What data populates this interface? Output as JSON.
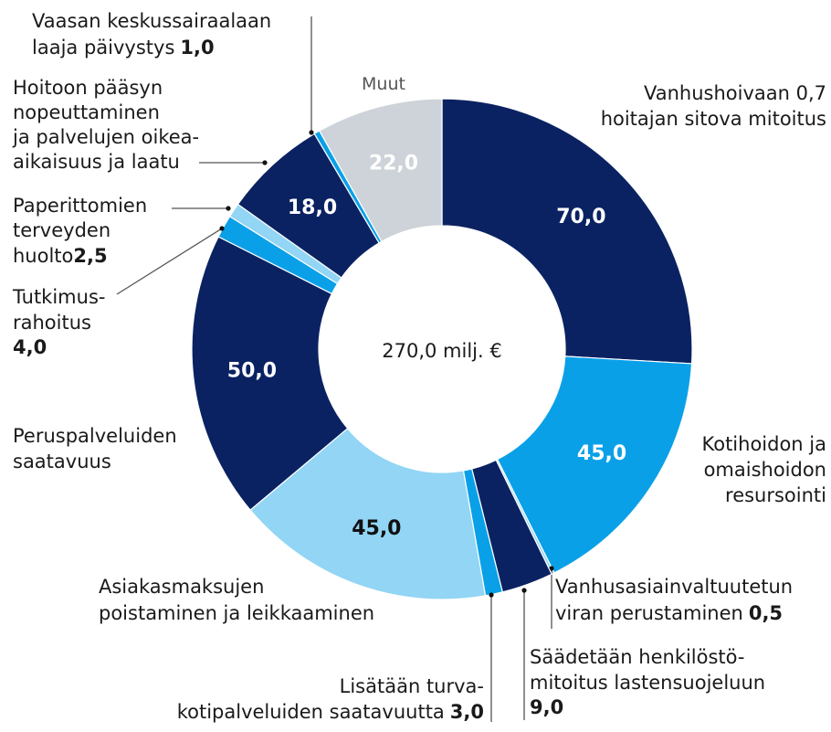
{
  "chart_data": {
    "type": "donut",
    "center_label": "270,0 milj. €",
    "categories": [
      [
        "Vanhushoivaan 0,7",
        "hoitajan sitova mitoitus"
      ],
      [
        "Kotihoidon ja",
        "omaishoidon",
        "resursointi"
      ],
      [
        "Vanhusasiainvaltuutetun",
        "viran perustaminen"
      ],
      [
        "Säädetään henkilöstö-",
        "mitoitus lastensuojeluun"
      ],
      [
        "Lisätään turva-",
        "kotipalveluiden saatavuutta"
      ],
      [
        "Asiakasmaksujen",
        "poistaminen ja leikkaaminen"
      ],
      [
        "Peruspalveluiden",
        "saatavuus"
      ],
      [
        "Tutkimus-",
        "rahoitus"
      ],
      [
        "Paperittomien",
        "terveyden",
        "huolto"
      ],
      [
        "Hoitoon pääsyn",
        "nopeuttaminen",
        "ja palvelujen oikea-",
        "aikaisuus ja laatu"
      ],
      [
        "Vaasan keskussairaalaan",
        "laaja päivystys"
      ],
      [
        "Muut"
      ]
    ],
    "values": [
      70,
      45,
      0.5,
      9,
      3,
      45,
      50,
      4,
      2.5,
      18,
      1,
      22
    ],
    "value_labels": [
      "70,0",
      "45,0",
      "0,5",
      "9,0",
      "3,0",
      "45,0",
      "50,0",
      "4,0",
      "2,5",
      "18,0",
      "1,0",
      "22,0"
    ],
    "colors": [
      "#0b2262",
      "#0aa0e8",
      "#92d5f5",
      "#0b2262",
      "#0aa0e8",
      "#92d5f5",
      "#0b2262",
      "#0aa0e8",
      "#92d5f5",
      "#0b2262",
      "#0aa0e8",
      "#cdd3d8"
    ]
  }
}
